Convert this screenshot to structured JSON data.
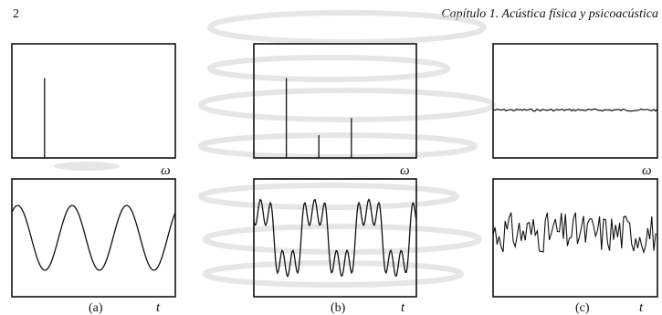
{
  "header": {
    "page_number": "2",
    "running_title": "Capítulo 1.  Acústica física y psicoacústica"
  },
  "colors": {
    "ink": "#111111",
    "watermark": "#d6d6d6"
  },
  "figure": {
    "panels": [
      {
        "label": "(a)",
        "spectrum_axis_label": "ω",
        "time_axis_label": "t",
        "spectrum_kind": "single_line",
        "spectrum_lines": [
          {
            "frequency": 1,
            "amplitude": 0.7
          }
        ],
        "waveform": {
          "kind": "sine",
          "cycles": 3,
          "amplitude": 0.55
        }
      },
      {
        "label": "(b)",
        "spectrum_axis_label": "ω",
        "time_axis_label": "t",
        "spectrum_kind": "three_lines",
        "spectrum_lines": [
          {
            "frequency": 1,
            "amplitude": 0.7
          },
          {
            "frequency": 3,
            "amplitude": 0.2
          },
          {
            "frequency": 5,
            "amplitude": 0.35
          }
        ],
        "waveform": {
          "kind": "sum_of_harmonics",
          "cycles": 3,
          "amplitude": 0.6
        }
      },
      {
        "label": "(c)",
        "spectrum_axis_label": "ω",
        "time_axis_label": "t",
        "spectrum_kind": "flat_noise",
        "spectrum_level": 0.42,
        "waveform": {
          "kind": "noise",
          "amplitude": 0.35
        }
      }
    ]
  }
}
